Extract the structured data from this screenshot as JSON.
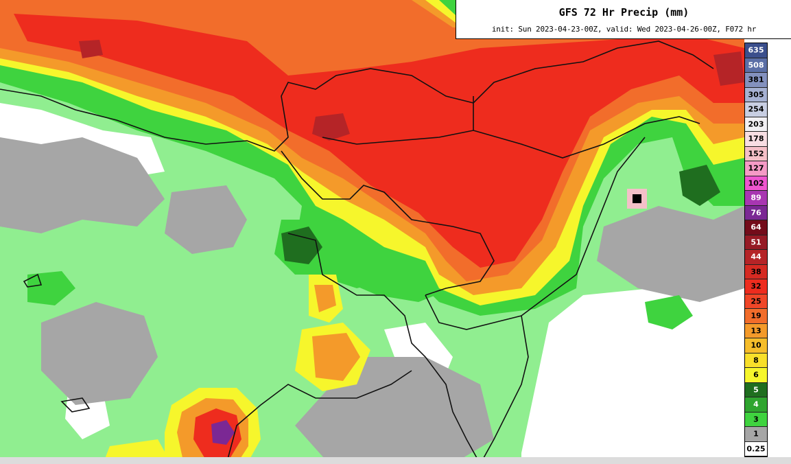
{
  "title": {
    "main": "GFS 72 Hr Precip (mm)",
    "sub": "init: Sun 2023-04-23-00Z, valid: Wed 2023-04-26-00Z, F072 hr"
  },
  "legend": {
    "bins": [
      {
        "label": "635",
        "color": "#3b4f8c"
      },
      {
        "label": "508",
        "color": "#5b6fa6"
      },
      {
        "label": "381",
        "color": "#8391be"
      },
      {
        "label": "305",
        "color": "#a6b1d2"
      },
      {
        "label": "254",
        "color": "#c8cee2"
      },
      {
        "label": "203",
        "color": "#f2f0f3"
      },
      {
        "label": "178",
        "color": "#f7dee3"
      },
      {
        "label": "152",
        "color": "#f5c0c8"
      },
      {
        "label": "127",
        "color": "#f59ac6"
      },
      {
        "label": "102",
        "color": "#ee55cf"
      },
      {
        "label": "89",
        "color": "#a836b1"
      },
      {
        "label": "76",
        "color": "#7b2894"
      },
      {
        "label": "64",
        "color": "#730c1a"
      },
      {
        "label": "51",
        "color": "#961a25"
      },
      {
        "label": "44",
        "color": "#b52427"
      },
      {
        "label": "38",
        "color": "#d62a22"
      },
      {
        "label": "32",
        "color": "#ee2c1e"
      },
      {
        "label": "25",
        "color": "#f04628"
      },
      {
        "label": "19",
        "color": "#f26d2b"
      },
      {
        "label": "13",
        "color": "#f49a2a"
      },
      {
        "label": "10",
        "color": "#f6bd2a"
      },
      {
        "label": "8",
        "color": "#f8df2a"
      },
      {
        "label": "6",
        "color": "#f6f62c"
      },
      {
        "label": "5",
        "color": "#1f6e1f"
      },
      {
        "label": "4",
        "color": "#2fa52f"
      },
      {
        "label": "3",
        "color": "#3fd33f"
      },
      {
        "label": "1",
        "color": "#a6a6a6"
      },
      {
        "label": "0.25",
        "color": "#ffffff"
      }
    ]
  },
  "map_colors": {
    "background": "#ffffff",
    "trace": "#a6a6a6",
    "light_green": "#90ee90",
    "green": "#3fd33f",
    "dark_green": "#1f6e1f",
    "yellow": "#f6f62c",
    "light_orange": "#f6bd2a",
    "orange": "#f49a2a",
    "dark_orange": "#f26d2b",
    "red": "#ee2c1e",
    "dark_red": "#b52427",
    "purple": "#7b2894",
    "boundary": "#111111"
  },
  "marker": {
    "name": "location-marker"
  }
}
